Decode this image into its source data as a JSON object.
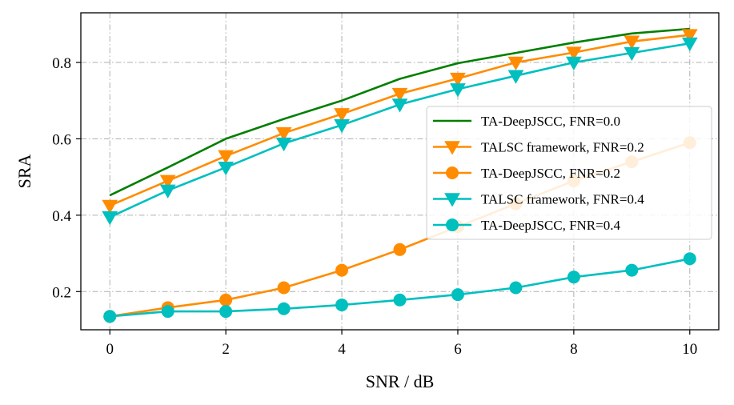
{
  "chart_data": {
    "type": "line",
    "title": "",
    "xlabel": "SNR / dB",
    "ylabel": "SRA",
    "xlim": [
      -0.5,
      10.5
    ],
    "ylim": [
      0.1,
      0.93
    ],
    "xticks": [
      0,
      2,
      4,
      6,
      8,
      10
    ],
    "yticks": [
      0.2,
      0.4,
      0.6,
      0.8
    ],
    "xtick_labels": [
      "0",
      "2",
      "4",
      "6",
      "8",
      "10"
    ],
    "ytick_labels": [
      "0.2",
      "0.4",
      "0.6",
      "0.8"
    ],
    "grid": true,
    "legend_position": "center-right",
    "x": [
      0,
      1,
      2,
      3,
      4,
      5,
      6,
      7,
      8,
      9,
      10
    ],
    "series": [
      {
        "name": "TA-DeepJSCC, FNR=0.0",
        "color": "#007f00",
        "marker": "none",
        "values": [
          0.452,
          0.525,
          0.6,
          0.652,
          0.7,
          0.757,
          0.798,
          0.825,
          0.852,
          0.876,
          0.888
        ]
      },
      {
        "name": "TALSC framework, FNR=0.2",
        "color": "#ff8c00",
        "marker": "triangle-down",
        "values": [
          0.425,
          0.49,
          0.555,
          0.615,
          0.665,
          0.718,
          0.758,
          0.8,
          0.826,
          0.855,
          0.872
        ]
      },
      {
        "name": "TA-DeepJSCC, FNR=0.2",
        "color": "#ff8c00",
        "marker": "circle",
        "values": [
          0.135,
          0.158,
          0.178,
          0.21,
          0.256,
          0.31,
          0.37,
          0.43,
          0.49,
          0.54,
          0.59
        ]
      },
      {
        "name": "TALSC framework, FNR=0.4",
        "color": "#00bfbf",
        "marker": "triangle-down",
        "values": [
          0.395,
          0.465,
          0.525,
          0.588,
          0.636,
          0.69,
          0.73,
          0.765,
          0.8,
          0.825,
          0.85
        ]
      },
      {
        "name": "TA-DeepJSCC, FNR=0.4",
        "color": "#00bfbf",
        "marker": "circle",
        "values": [
          0.135,
          0.148,
          0.148,
          0.155,
          0.165,
          0.178,
          0.192,
          0.21,
          0.238,
          0.256,
          0.286
        ]
      }
    ]
  }
}
